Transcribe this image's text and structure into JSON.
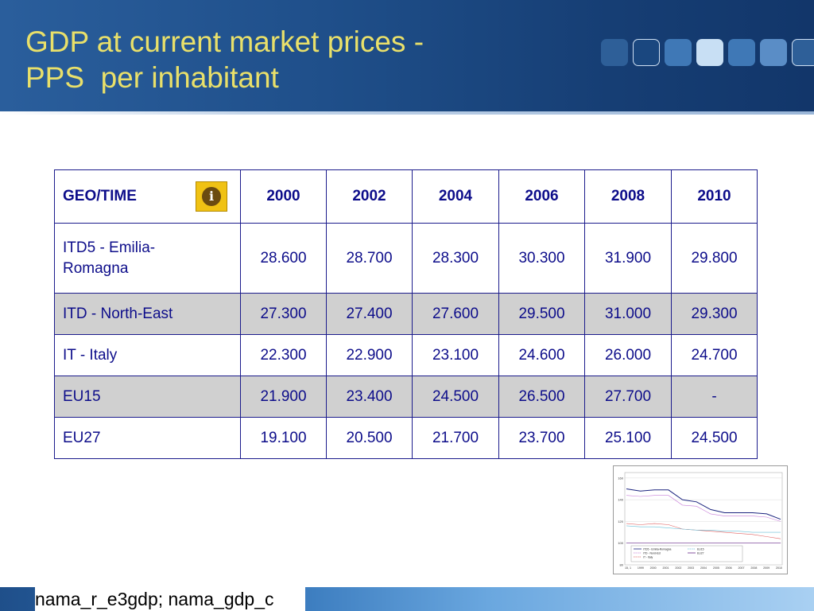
{
  "slide": {
    "title_line1": "GDP at current market prices -",
    "title_line2": "PPS  per inhabitant",
    "footer": "nama_r_e3gdp; nama_gdp_c"
  },
  "colors": {
    "title": "#e9e06a",
    "header_bg": "#1f4f8a",
    "table_text": "#0d0d8a",
    "row_shade": "#d0d0d0"
  },
  "table": {
    "header": [
      "GEO/TIME",
      "2000",
      "2002",
      "2004",
      "2006",
      "2008",
      "2010"
    ],
    "info_icon": "info-icon",
    "rows": [
      {
        "geo": "ITD5 - Emilia-Romagna",
        "values": [
          "28.600",
          "28.700",
          "28.300",
          "30.300",
          "31.900",
          "29.800"
        ]
      },
      {
        "geo": "ITD - North-East",
        "values": [
          "27.300",
          "27.400",
          "27.600",
          "29.500",
          "31.000",
          "29.300"
        ]
      },
      {
        "geo": "IT - Italy",
        "values": [
          "22.300",
          "22.900",
          "23.100",
          "24.600",
          "26.000",
          "24.700"
        ]
      },
      {
        "geo": "EU15",
        "values": [
          "21.900",
          "23.400",
          "24.500",
          "26.500",
          "27.700",
          "-"
        ]
      },
      {
        "geo": "EU27",
        "values": [
          "19.100",
          "20.500",
          "21.700",
          "23.700",
          "25.100",
          "24.500"
        ]
      }
    ]
  },
  "thumbnail_chart": {
    "y_ticks": [
      "160",
      "140",
      "120",
      "100",
      "80"
    ],
    "x_ticks": [
      "15, 1",
      "1999",
      "2000",
      "2001",
      "2002",
      "2003",
      "2004",
      "2005",
      "2006",
      "2007",
      "2008",
      "2009",
      "2010"
    ],
    "legend": [
      {
        "label": "ITD5 - Emilia-Romagna",
        "color": "#1a237e",
        "dash": false
      },
      {
        "label": "ITD - Nord-Est",
        "color": "#c77dd8",
        "dash": true
      },
      {
        "label": "IT - Italy",
        "color": "#e06060",
        "dash": true
      },
      {
        "label": "EU15",
        "color": "#6ac0d8",
        "dash": true
      },
      {
        "label": "EU27",
        "color": "#6a2a8a",
        "dash": false
      }
    ],
    "ylim": [
      80,
      165
    ],
    "series": [
      {
        "color": "#1a237e",
        "values": [
          150,
          148,
          149,
          149,
          140,
          138,
          131,
          128,
          128,
          128,
          127,
          122
        ]
      },
      {
        "color": "#c77dd8",
        "values": [
          144,
          143,
          144,
          144,
          135,
          134,
          127,
          125,
          125,
          125,
          124,
          120
        ]
      },
      {
        "color": "#e06060",
        "values": [
          118,
          117,
          118,
          117,
          113,
          112,
          111,
          110,
          109,
          108,
          106,
          104
        ]
      },
      {
        "color": "#6ac0d8",
        "values": [
          116,
          115,
          115,
          114,
          113,
          112,
          112,
          111,
          111,
          110,
          110,
          110
        ]
      },
      {
        "color": "#6a2a8a",
        "values": [
          100,
          100,
          100,
          100,
          100,
          100,
          100,
          100,
          100,
          100,
          100,
          100
        ]
      }
    ]
  }
}
